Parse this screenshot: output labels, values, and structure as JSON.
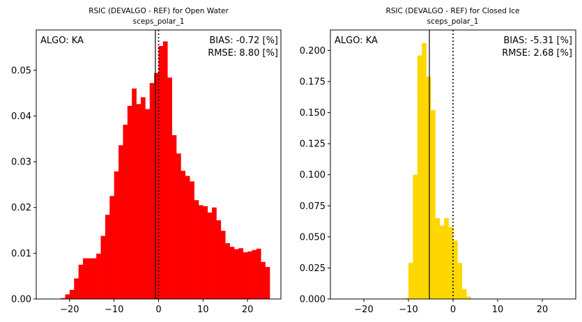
{
  "chart_data": [
    {
      "type": "bar",
      "title": "RSIC (DEVALGO - REF) for Open Water",
      "subtitle": "sceps_polar_1",
      "xlabel": "",
      "ylabel": "",
      "xlim": [
        -27.5,
        27.5
      ],
      "ylim": [
        0,
        0.0588
      ],
      "xticks": [
        -20,
        -10,
        0,
        10,
        20
      ],
      "xtick_labels": [
        "−20",
        "−10",
        "0",
        "10",
        "20"
      ],
      "yticks": [
        0.0,
        0.01,
        0.02,
        0.03,
        0.04,
        0.05
      ],
      "ytick_labels": [
        "0.00",
        "0.01",
        "0.02",
        "0.03",
        "0.04",
        "0.05"
      ],
      "bar_color": "#ff0000",
      "bin_width": 1,
      "bins_start": [
        -22,
        -21,
        -20,
        -19,
        -18,
        -17,
        -16,
        -15,
        -14,
        -13,
        -12,
        -11,
        -10,
        -9,
        -8,
        -7,
        -6,
        -5,
        -4,
        -3,
        -2,
        -1,
        0,
        1,
        2,
        3,
        4,
        5,
        6,
        7,
        8,
        9,
        10,
        11,
        12,
        13,
        14,
        15,
        16,
        17,
        18,
        19,
        20,
        21,
        22,
        23,
        24
      ],
      "values": [
        0.0002,
        0.001,
        0.002,
        0.0045,
        0.0075,
        0.0089,
        0.0089,
        0.0089,
        0.0099,
        0.0138,
        0.0184,
        0.0225,
        0.0279,
        0.0336,
        0.0381,
        0.0422,
        0.046,
        0.0426,
        0.0441,
        0.0415,
        0.0472,
        0.0494,
        0.0553,
        0.0563,
        0.0484,
        0.0358,
        0.0318,
        0.028,
        0.0269,
        0.0257,
        0.0216,
        0.0205,
        0.0203,
        0.0189,
        0.02,
        0.0172,
        0.0149,
        0.0122,
        0.0114,
        0.0109,
        0.0111,
        0.0102,
        0.0104,
        0.0107,
        0.011,
        0.0081,
        0.007
      ],
      "reference_lines": {
        "bias_x": -0.72,
        "zero_x": 0
      },
      "annotations": {
        "algo": "ALGO: KA",
        "bias": "BIAS: -0.72 [%]",
        "rmse": "RMSE: 8.80 [%]"
      }
    },
    {
      "type": "bar",
      "title": "RSIC (DEVALGO - REF) for Closed Ice",
      "subtitle": "sceps_polar_1",
      "xlabel": "",
      "ylabel": "",
      "xlim": [
        -27.5,
        27.5
      ],
      "ylim": [
        0,
        0.2165
      ],
      "xticks": [
        -20,
        -10,
        0,
        10,
        20
      ],
      "xtick_labels": [
        "−20",
        "−10",
        "0",
        "10",
        "20"
      ],
      "yticks": [
        0.0,
        0.025,
        0.05,
        0.075,
        0.1,
        0.125,
        0.15,
        0.175,
        0.2
      ],
      "ytick_labels": [
        "0.000",
        "0.025",
        "0.050",
        "0.075",
        "0.100",
        "0.125",
        "0.150",
        "0.175",
        "0.200"
      ],
      "bar_color": "#ffd700",
      "bin_width": 1,
      "bins_start": [
        -11,
        -10,
        -9,
        -8,
        -7,
        -6,
        -5,
        -4,
        -3,
        -2,
        -1,
        0,
        1,
        2,
        3
      ],
      "values": [
        0.0008,
        0.029,
        0.1,
        0.196,
        0.206,
        0.179,
        0.152,
        0.065,
        0.059,
        0.065,
        0.058,
        0.047,
        0.029,
        0.008,
        0.002
      ],
      "reference_lines": {
        "bias_x": -5.31,
        "zero_x": 0
      },
      "annotations": {
        "algo": "ALGO: KA",
        "bias": "BIAS: -5.31 [%]",
        "rmse": "RMSE: 2.68 [%]"
      }
    }
  ]
}
